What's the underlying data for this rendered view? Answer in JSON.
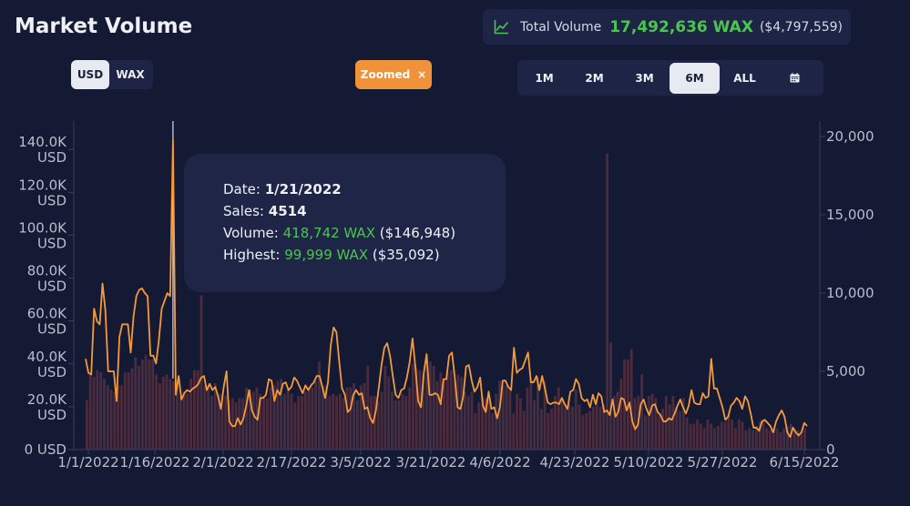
{
  "header": {
    "title": "Market Volume",
    "total_label": "Total Volume",
    "total_wax": "17,492,636 WAX",
    "total_usd": "($4,797,559)"
  },
  "currency_toggle": {
    "usd": "USD",
    "wax": "WAX",
    "selected": "USD"
  },
  "zoom_badge": {
    "label": "Zoomed",
    "close": "×"
  },
  "ranges": {
    "items": [
      "1M",
      "2M",
      "3M",
      "6M",
      "ALL"
    ],
    "active": "6M",
    "calendar_icon": "calendar-icon"
  },
  "tooltip": {
    "date_label": "Date:",
    "date": "1/21/2022",
    "sales_label": "Sales:",
    "sales": "4514",
    "volume_label": "Volume:",
    "volume_wax": "418,742 WAX",
    "volume_usd": "($146,948)",
    "highest_label": "Highest:",
    "highest_wax": "99,999 WAX",
    "highest_usd": "($35,092)"
  },
  "chart_data": {
    "type": "bar",
    "x_tick_labels": [
      "1/1/2022",
      "1/16/2022",
      "2/1/2022",
      "2/17/2022",
      "3/5/2022",
      "3/21/2022",
      "4/6/2022",
      "4/23/2022",
      "5/10/2022",
      "5/27/2022",
      "6/15/2022"
    ],
    "y_left_ticks": [
      "0 USD",
      "20.0K USD",
      "40.0K USD",
      "60.0K USD",
      "80.0K USD",
      "100.0K USD",
      "120.0K USD",
      "140.0K USD"
    ],
    "y_left_range": [
      0,
      146000
    ],
    "y_right_ticks": [
      "0",
      "5,000",
      "10,000",
      "15,000",
      "20,000"
    ],
    "y_right_range": [
      0,
      20000
    ],
    "series": [
      {
        "kind": "bar",
        "axis": "left",
        "color": "#4a2c3e",
        "values": [
          23000,
          36000,
          34000,
          37000,
          36000,
          33000,
          30000,
          28000,
          27000,
          30000,
          30000,
          36000,
          36000,
          38000,
          43000,
          39000,
          42000,
          44000,
          42000,
          42000,
          35000,
          31000,
          34000,
          35000,
          33000,
          32000,
          30000,
          25000,
          27000,
          26000,
          33000,
          37000,
          37000,
          72000,
          30000,
          29000,
          25000,
          31000,
          26000,
          26000,
          25000,
          23000,
          24000,
          22000,
          24000,
          24000,
          29000,
          28000,
          27000,
          29000,
          26000,
          25000,
          24000,
          29000,
          30000,
          32000,
          33000,
          26000,
          28000,
          26000,
          22000,
          25000,
          25000,
          27000,
          29000,
          29000,
          32000,
          41000,
          30000,
          30000,
          25000,
          26000,
          25000,
          26000,
          24000,
          29000,
          29000,
          31000,
          23000,
          30000,
          31000,
          39000,
          25000,
          25000,
          22000,
          27000,
          39000,
          34000,
          27000,
          23000,
          23000,
          26000,
          25000,
          29000,
          40000,
          38000,
          37000,
          35000,
          41000,
          41000,
          39000,
          32000,
          36000,
          32000,
          36000,
          37000,
          32000,
          35000,
          34000,
          27000,
          25000,
          27000,
          17000,
          22000,
          25000,
          24000,
          24000,
          17000,
          26000,
          32000,
          30000,
          30000,
          28000,
          17000,
          26000,
          24000,
          18000,
          29000,
          33000,
          23000,
          34000,
          19000,
          32000,
          17000,
          19000,
          25000,
          29000,
          24000,
          20000,
          21000,
          20000,
          28000,
          21000,
          16000,
          17000,
          18000,
          20000,
          23000,
          20000,
          21000,
          138000,
          50000,
          25000,
          27000,
          33000,
          42000,
          42000,
          47000,
          24000,
          25000,
          35000,
          16000,
          25000,
          26000,
          24000,
          16000,
          19000,
          25000,
          21000,
          25000,
          20000,
          18000,
          24000,
          15000,
          12000,
          12000,
          14000,
          12000,
          10000,
          14000,
          12000,
          10000,
          11000,
          13000,
          13000,
          16000,
          14000,
          10000,
          14000,
          13000,
          9000,
          10000,
          9000,
          11000,
          13000,
          13000,
          10000,
          9000,
          9000,
          10000,
          8000,
          10000,
          11000,
          12000,
          10000,
          9000,
          8000,
          10000
        ]
      },
      {
        "kind": "line",
        "axis": "right",
        "color": "#f59a3c",
        "values": [
          5800,
          4900,
          4800,
          9000,
          8200,
          8000,
          10600,
          8900,
          5000,
          5000,
          5000,
          3100,
          7200,
          8000,
          8000,
          8000,
          6200,
          8500,
          9800,
          10200,
          10300,
          10000,
          9800,
          6000,
          6000,
          5500,
          7000,
          9000,
          9500,
          10000,
          9800,
          19800,
          3500,
          4700,
          3200,
          3600,
          3800,
          3700,
          3900,
          4000,
          4200,
          4600,
          4700,
          3800,
          4200,
          3800,
          4000,
          3400,
          2600,
          4000,
          5000,
          1800,
          1500,
          1500,
          2000,
          1600,
          2000,
          2800,
          3800,
          2500,
          2100,
          1900,
          3300,
          3300,
          3500,
          4500,
          4400,
          3100,
          3800,
          3500,
          4200,
          4300,
          3800,
          4000,
          4600,
          4400,
          4000,
          3600,
          4100,
          3800,
          4100,
          4300,
          4700,
          4700,
          4000,
          3300,
          4300,
          6700,
          7800,
          7500,
          5600,
          3900,
          3500,
          2400,
          2600,
          3500,
          3800,
          3500,
          3600,
          2600,
          2700,
          2000,
          1700,
          2500,
          3900,
          5400,
          6500,
          6800,
          6000,
          4700,
          3500,
          3300,
          3800,
          3900,
          4600,
          5600,
          7100,
          5300,
          3100,
          2700,
          4900,
          6100,
          3500,
          3500,
          3600,
          3500,
          2900,
          4500,
          4500,
          6000,
          6200,
          4600,
          2700,
          2600,
          3400,
          5300,
          5400,
          4400,
          3700,
          4000,
          4600,
          2800,
          2400,
          3700,
          2600,
          2700,
          2000,
          2700,
          4400,
          4400,
          4000,
          3800,
          6500,
          4900,
          5100,
          5200,
          5700,
          6200,
          4300,
          4300,
          4700,
          3800,
          4700,
          3900,
          3000,
          2900,
          3000,
          3000,
          2900,
          3300,
          2900,
          2600,
          3700,
          3800,
          4500,
          4200,
          3300,
          3100,
          3200,
          2700,
          3500,
          2900,
          3600,
          3400,
          2400,
          2500,
          2200,
          3200,
          2100,
          2400,
          3300,
          3200,
          2500,
          3000,
          1800,
          1300,
          1600,
          2900,
          3200,
          2600,
          2200,
          2800,
          2900,
          2400,
          2200,
          1800,
          1800,
          2000,
          1900,
          2300,
          2800,
          3200,
          2700,
          2300,
          2800,
          3800,
          3000,
          2900,
          2900,
          3600,
          3300,
          3400,
          5800,
          3900,
          3900,
          3300,
          2700,
          1900,
          2100,
          2800,
          3000,
          3300,
          3100,
          2600,
          3400,
          3100,
          2300,
          1400,
          1400,
          1200,
          1800,
          1900,
          1700,
          1500,
          1100,
          1800,
          2200,
          2500,
          2100,
          1100,
          800,
          1400,
          1100,
          900,
          1100,
          1700,
          1500
        ]
      }
    ],
    "x_axis_note": "line covers 1/1/2022 through 6/15/2022",
    "highlight_date": "1/21/2022",
    "grid": false,
    "legend": "none"
  }
}
